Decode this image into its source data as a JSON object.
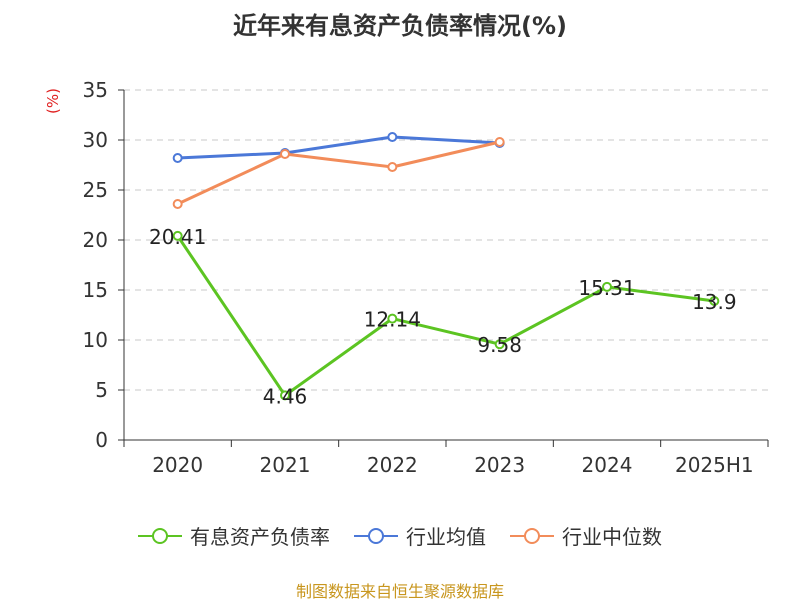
{
  "chart_data": {
    "type": "line",
    "title": "近年来有息资产负债率情况(%)",
    "ylabel": "(%)",
    "categories": [
      "2020",
      "2021",
      "2022",
      "2023",
      "2024",
      "2025H1"
    ],
    "ylim": [
      0,
      35
    ],
    "yticks": [
      0,
      5,
      10,
      15,
      20,
      25,
      30,
      35
    ],
    "grid": true,
    "legend_position": "bottom",
    "series": [
      {
        "name": "有息资产负债率",
        "color": "#5cc422",
        "values": [
          20.41,
          4.46,
          12.14,
          9.58,
          15.31,
          13.9
        ],
        "labels": [
          "20.41",
          "4.46",
          "12.14",
          "9.58",
          "15.31",
          "13.9"
        ]
      },
      {
        "name": "行业均值",
        "color": "#4b78d8",
        "values": [
          28.2,
          28.7,
          30.3,
          29.7,
          null,
          null
        ]
      },
      {
        "name": "行业中位数",
        "color": "#f28c5a",
        "values": [
          23.6,
          28.6,
          27.3,
          29.8,
          null,
          null
        ]
      }
    ]
  },
  "source_text": "制图数据来自恒生聚源数据库"
}
